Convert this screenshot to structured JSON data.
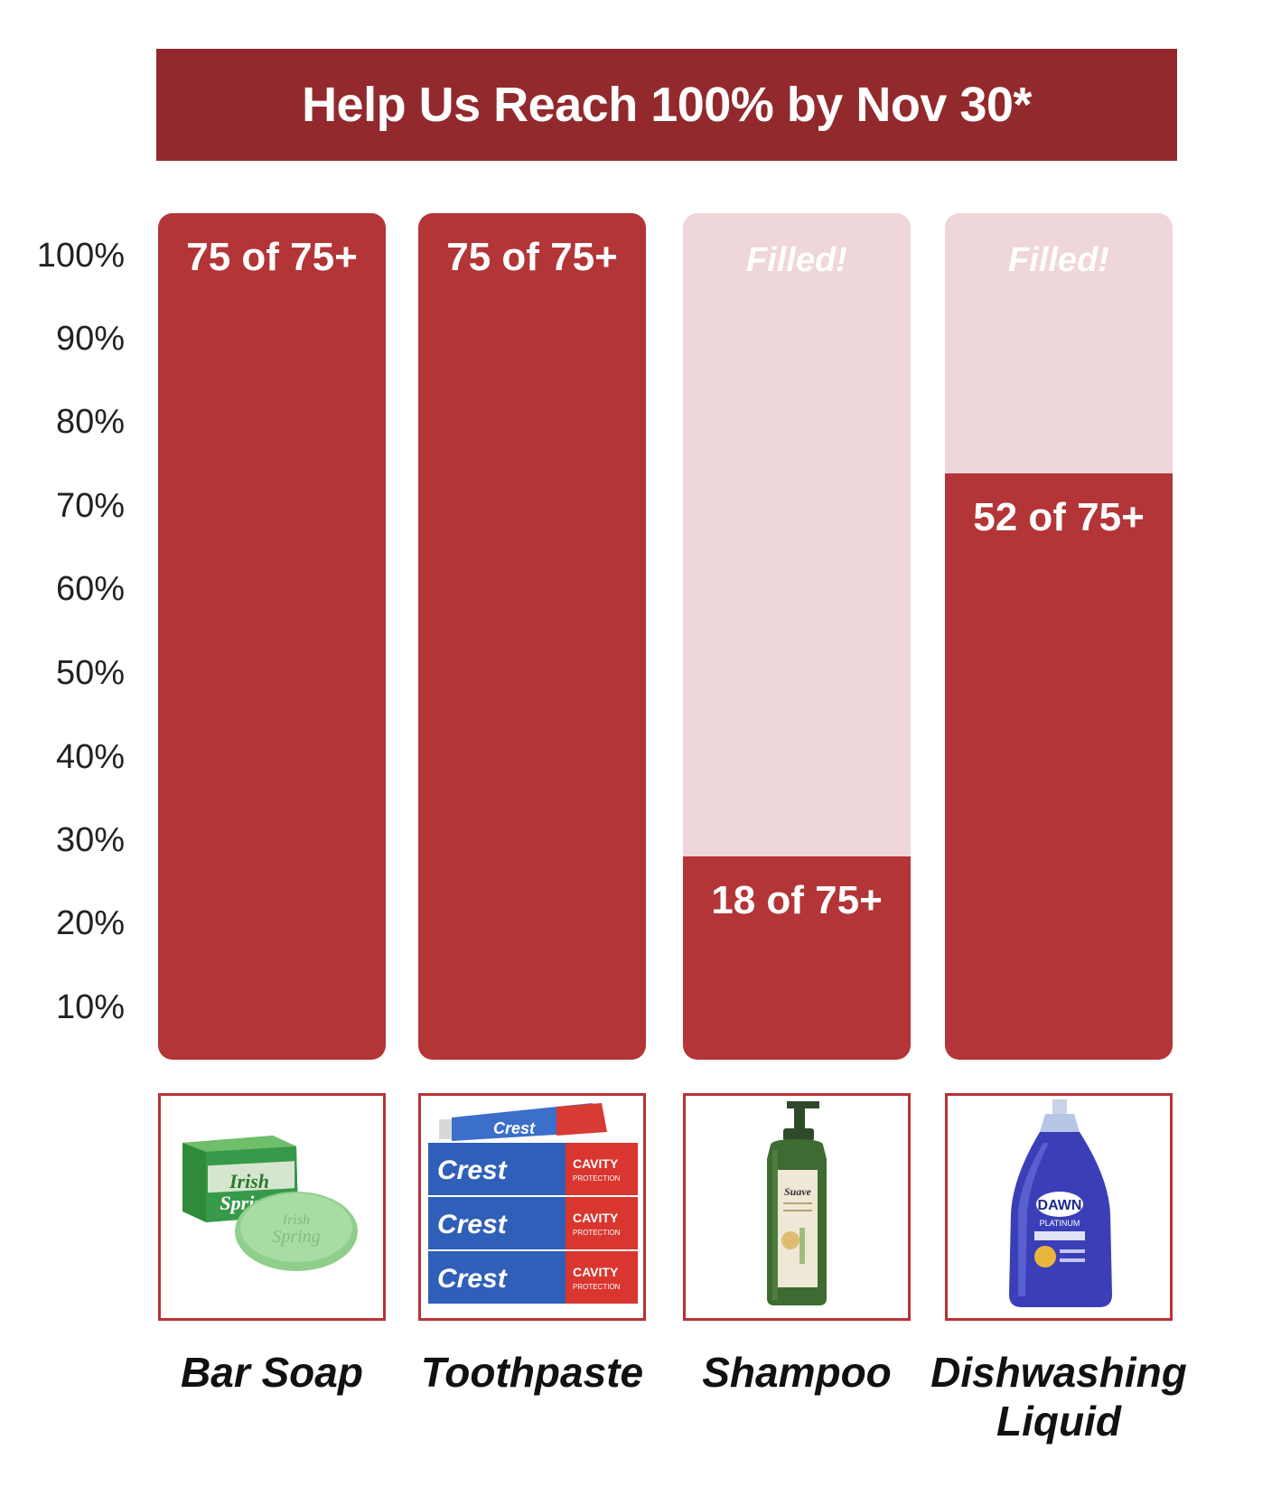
{
  "title": "Help Us Reach 100% by Nov 30*",
  "y_ticks": [
    "100%",
    "90%",
    "80%",
    "70%",
    "60%",
    "50%",
    "40%",
    "30%",
    "20%",
    "10%"
  ],
  "colors": {
    "banner": "#922a2d",
    "fill": "#b33537",
    "track": "#efd6d8",
    "frame": "#b83234"
  },
  "chart_data": {
    "type": "bar",
    "title": "Help Us Reach 100% by Nov 30*",
    "categories": [
      "Bar Soap",
      "Toothpaste",
      "Shampoo",
      "Dishwashing Liquid"
    ],
    "values": [
      75,
      75,
      18,
      52
    ],
    "goal": 75,
    "ylim": [
      0,
      100
    ],
    "yunit": "%",
    "labels": [
      "75 of 75+",
      "75 of 75+",
      "18 of 75+",
      "52 of 75+"
    ],
    "track_label": "Filled!"
  },
  "items": [
    {
      "name": "Bar Soap",
      "label_line1": "Bar Soap",
      "label_line2": "",
      "fill_label": "75 of 75+",
      "track_label": "",
      "percent": 100,
      "image": "bar-soap-image"
    },
    {
      "name": "Toothpaste",
      "label_line1": "Toothpaste",
      "label_line2": "",
      "fill_label": "75 of 75+",
      "track_label": "",
      "percent": 100,
      "image": "toothpaste-image"
    },
    {
      "name": "Shampoo",
      "label_line1": "Shampoo",
      "label_line2": "",
      "fill_label": "18 of 75+",
      "track_label": "Filled!",
      "percent": 24,
      "image": "shampoo-image"
    },
    {
      "name": "Dishwashing Liquid",
      "label_line1": "Dishwashing",
      "label_line2": "Liquid",
      "fill_label": "52 of 75+",
      "track_label": "Filled!",
      "percent": 69.3,
      "image": "dish-soap-image"
    }
  ]
}
